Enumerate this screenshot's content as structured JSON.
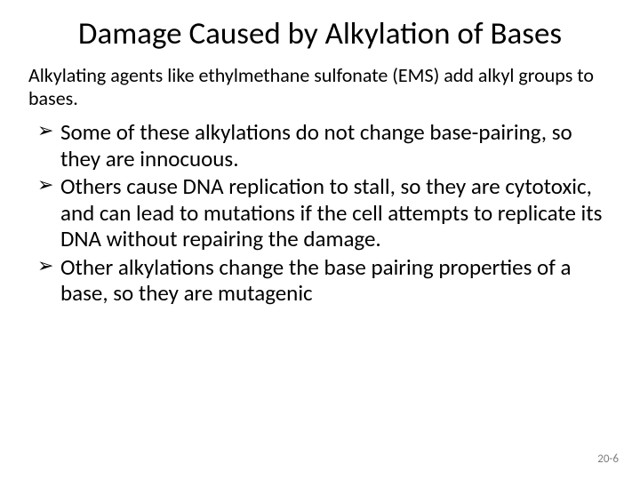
{
  "slide": {
    "title": "Damage Caused by Alkylation of Bases",
    "intro": "Alkylating agents like ethylmethane sulfonate (EMS) add alkyl groups to bases.",
    "bullets": [
      "Some of these alkylations do not change base-pairing, so they are innocuous.",
      "Others cause DNA replication to stall, so they are cytotoxic, and can lead to mutations if the cell attempts to replicate its DNA without repairing the damage.",
      "Other alkylations change the base pairing properties of a base, so they are mutagenic"
    ],
    "page_number": "20-6"
  },
  "style": {
    "background_color": "#ffffff",
    "text_color": "#000000",
    "pagenum_color": "#7f7f7f",
    "title_fontsize": 35,
    "intro_fontsize": 22,
    "bullet_fontsize": 25,
    "pagenum_fontsize": 13,
    "font_family": "Calibri"
  }
}
